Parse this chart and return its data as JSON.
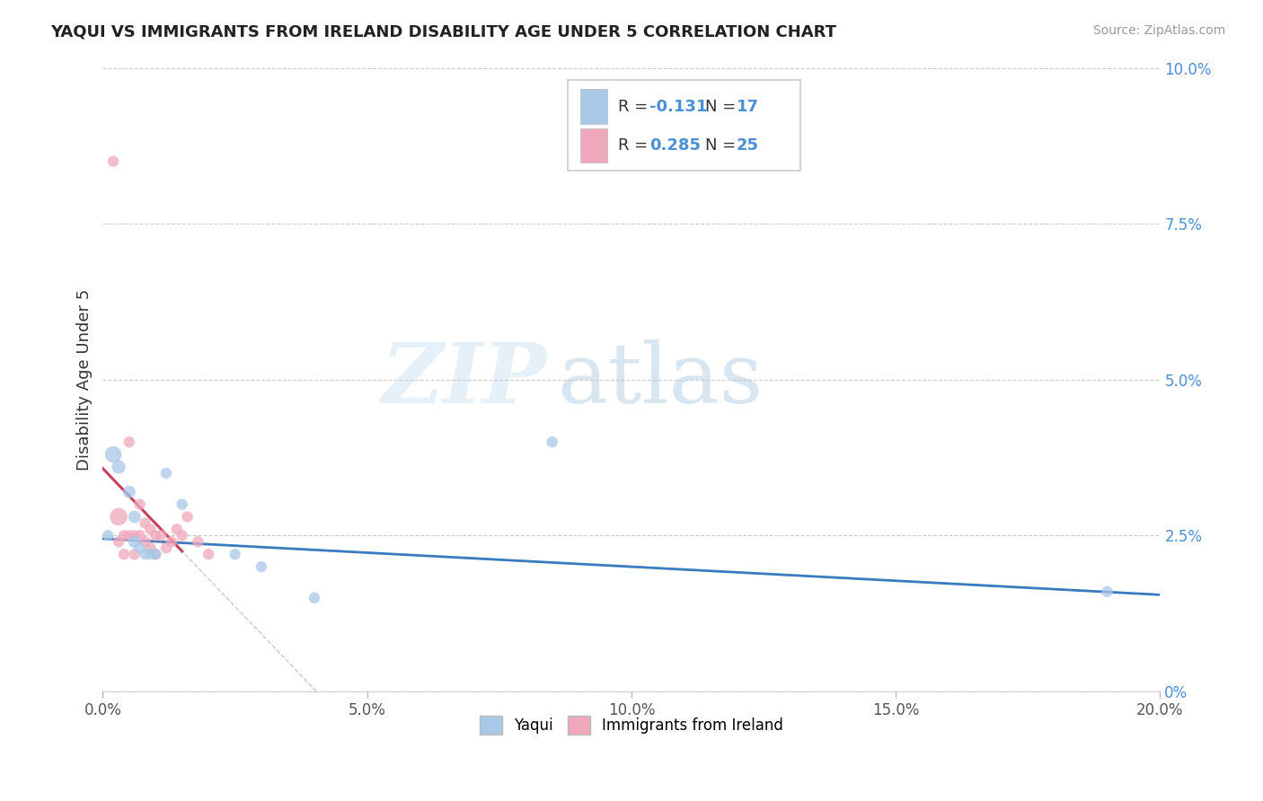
{
  "title": "YAQUI VS IMMIGRANTS FROM IRELAND DISABILITY AGE UNDER 5 CORRELATION CHART",
  "source": "Source: ZipAtlas.com",
  "ylabel": "Disability Age Under 5",
  "watermark_zip": "ZIP",
  "watermark_atlas": "atlas",
  "xlim": [
    0.0,
    0.2
  ],
  "ylim": [
    0.0,
    0.1
  ],
  "xtick_vals": [
    0.0,
    0.05,
    0.1,
    0.15,
    0.2
  ],
  "xtick_labels": [
    "0.0%",
    "5.0%",
    "10.0%",
    "15.0%",
    "20.0%"
  ],
  "ytick_vals": [
    0.0,
    0.025,
    0.05,
    0.075,
    0.1
  ],
  "ytick_labels": [
    "0%",
    "2.5%",
    "5.0%",
    "7.5%",
    "10.0%"
  ],
  "legend_r1": "-0.131",
  "legend_n1": "17",
  "legend_r2": "0.285",
  "legend_n2": "25",
  "yaqui_color": "#a8c8e8",
  "ireland_color": "#f0a8bc",
  "yaqui_line_color": "#3a7abf",
  "ireland_line_color": "#c8405a",
  "ireland_dash_color": "#d8a0b0",
  "background_color": "#ffffff",
  "grid_color": "#cccccc",
  "title_color": "#222222",
  "yaqui_x": [
    0.002,
    0.003,
    0.005,
    0.006,
    0.006,
    0.007,
    0.008,
    0.009,
    0.01,
    0.012,
    0.015,
    0.025,
    0.03,
    0.04,
    0.085,
    0.19,
    0.001
  ],
  "yaqui_y": [
    0.038,
    0.036,
    0.032,
    0.028,
    0.024,
    0.023,
    0.022,
    0.022,
    0.022,
    0.035,
    0.03,
    0.022,
    0.02,
    0.015,
    0.04,
    0.016,
    0.025
  ],
  "yaqui_sizes": [
    180,
    120,
    100,
    100,
    100,
    80,
    80,
    80,
    80,
    80,
    80,
    80,
    80,
    80,
    80,
    80,
    80
  ],
  "ireland_x": [
    0.002,
    0.003,
    0.003,
    0.004,
    0.004,
    0.005,
    0.005,
    0.006,
    0.006,
    0.007,
    0.007,
    0.008,
    0.008,
    0.009,
    0.009,
    0.01,
    0.01,
    0.011,
    0.012,
    0.013,
    0.014,
    0.015,
    0.016,
    0.018,
    0.02
  ],
  "ireland_y": [
    0.085,
    0.028,
    0.024,
    0.025,
    0.022,
    0.04,
    0.025,
    0.025,
    0.022,
    0.03,
    0.025,
    0.027,
    0.024,
    0.026,
    0.023,
    0.025,
    0.022,
    0.025,
    0.023,
    0.024,
    0.026,
    0.025,
    0.028,
    0.024,
    0.022
  ],
  "ireland_sizes": [
    80,
    200,
    80,
    80,
    80,
    80,
    80,
    80,
    80,
    80,
    80,
    80,
    80,
    80,
    80,
    80,
    80,
    80,
    80,
    80,
    80,
    80,
    80,
    80,
    80
  ]
}
